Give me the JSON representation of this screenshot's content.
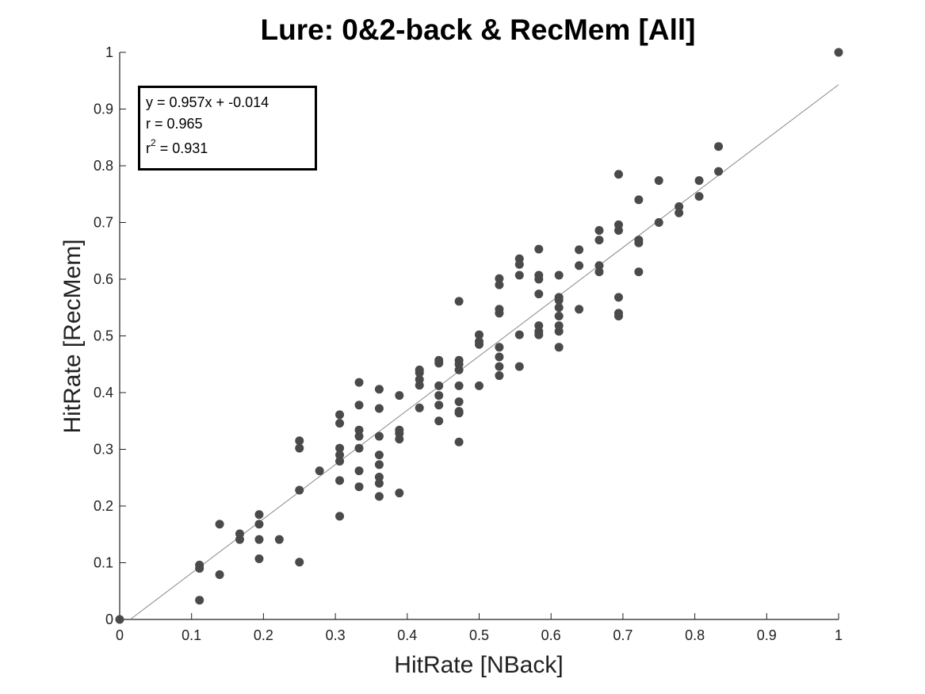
{
  "chart_data": {
    "type": "scatter",
    "title": "Lure: 0&2-back & RecMem [All]",
    "xlabel": "HitRate [NBack]",
    "ylabel": "HitRate [RecMem]",
    "xlim": [
      0,
      1
    ],
    "ylim": [
      0,
      1
    ],
    "xticks": [
      "0",
      "0.1",
      "0.2",
      "0.3",
      "0.4",
      "0.5",
      "0.6",
      "0.7",
      "0.8",
      "0.9",
      "1"
    ],
    "yticks": [
      "0",
      "0.1",
      "0.2",
      "0.3",
      "0.4",
      "0.5",
      "0.6",
      "0.7",
      "0.8",
      "0.9",
      "1"
    ],
    "grid": false,
    "marker_color": "#4a4a4a",
    "fit_line_color": "#888888",
    "fit": {
      "slope": 0.957,
      "intercept": -0.014
    },
    "stats": {
      "equation": "y = 0.957x + -0.014",
      "r": "r = 0.965",
      "r2_prefix": "r",
      "r2_sup": "2",
      "r2_value": " = 0.931"
    },
    "points": [
      [
        0,
        0
      ],
      [
        1,
        1
      ],
      [
        0.111,
        0.096
      ],
      [
        0.111,
        0.09
      ],
      [
        0.111,
        0.034
      ],
      [
        0.139,
        0.168
      ],
      [
        0.139,
        0.079
      ],
      [
        0.167,
        0.151
      ],
      [
        0.167,
        0.141
      ],
      [
        0.194,
        0.185
      ],
      [
        0.194,
        0.168
      ],
      [
        0.194,
        0.141
      ],
      [
        0.194,
        0.107
      ],
      [
        0.222,
        0.141
      ],
      [
        0.25,
        0.315
      ],
      [
        0.25,
        0.302
      ],
      [
        0.25,
        0.228
      ],
      [
        0.25,
        0.101
      ],
      [
        0.278,
        0.262
      ],
      [
        0.306,
        0.361
      ],
      [
        0.306,
        0.346
      ],
      [
        0.306,
        0.302
      ],
      [
        0.306,
        0.29
      ],
      [
        0.306,
        0.279
      ],
      [
        0.306,
        0.245
      ],
      [
        0.306,
        0.182
      ],
      [
        0.333,
        0.418
      ],
      [
        0.333,
        0.378
      ],
      [
        0.333,
        0.334
      ],
      [
        0.333,
        0.323
      ],
      [
        0.333,
        0.302
      ],
      [
        0.333,
        0.262
      ],
      [
        0.333,
        0.234
      ],
      [
        0.361,
        0.406
      ],
      [
        0.361,
        0.372
      ],
      [
        0.361,
        0.323
      ],
      [
        0.361,
        0.29
      ],
      [
        0.361,
        0.273
      ],
      [
        0.361,
        0.251
      ],
      [
        0.361,
        0.24
      ],
      [
        0.361,
        0.217
      ],
      [
        0.389,
        0.395
      ],
      [
        0.389,
        0.334
      ],
      [
        0.389,
        0.328
      ],
      [
        0.389,
        0.318
      ],
      [
        0.389,
        0.223
      ],
      [
        0.417,
        0.44
      ],
      [
        0.417,
        0.435
      ],
      [
        0.417,
        0.423
      ],
      [
        0.417,
        0.413
      ],
      [
        0.417,
        0.373
      ],
      [
        0.444,
        0.457
      ],
      [
        0.444,
        0.452
      ],
      [
        0.444,
        0.412
      ],
      [
        0.444,
        0.395
      ],
      [
        0.444,
        0.378
      ],
      [
        0.444,
        0.35
      ],
      [
        0.472,
        0.561
      ],
      [
        0.472,
        0.457
      ],
      [
        0.472,
        0.45
      ],
      [
        0.472,
        0.44
      ],
      [
        0.472,
        0.412
      ],
      [
        0.472,
        0.384
      ],
      [
        0.472,
        0.367
      ],
      [
        0.472,
        0.364
      ],
      [
        0.472,
        0.313
      ],
      [
        0.5,
        0.502
      ],
      [
        0.5,
        0.49
      ],
      [
        0.5,
        0.485
      ],
      [
        0.5,
        0.412
      ],
      [
        0.528,
        0.601
      ],
      [
        0.528,
        0.59
      ],
      [
        0.528,
        0.547
      ],
      [
        0.528,
        0.54
      ],
      [
        0.528,
        0.48
      ],
      [
        0.528,
        0.463
      ],
      [
        0.528,
        0.446
      ],
      [
        0.528,
        0.43
      ],
      [
        0.556,
        0.636
      ],
      [
        0.556,
        0.626
      ],
      [
        0.556,
        0.607
      ],
      [
        0.556,
        0.502
      ],
      [
        0.556,
        0.446
      ],
      [
        0.583,
        0.653
      ],
      [
        0.583,
        0.607
      ],
      [
        0.583,
        0.6
      ],
      [
        0.583,
        0.574
      ],
      [
        0.583,
        0.518
      ],
      [
        0.583,
        0.508
      ],
      [
        0.583,
        0.502
      ],
      [
        0.611,
        0.607
      ],
      [
        0.611,
        0.568
      ],
      [
        0.611,
        0.563
      ],
      [
        0.611,
        0.55
      ],
      [
        0.611,
        0.535
      ],
      [
        0.611,
        0.518
      ],
      [
        0.611,
        0.508
      ],
      [
        0.611,
        0.48
      ],
      [
        0.639,
        0.652
      ],
      [
        0.639,
        0.624
      ],
      [
        0.639,
        0.547
      ],
      [
        0.667,
        0.686
      ],
      [
        0.667,
        0.669
      ],
      [
        0.667,
        0.624
      ],
      [
        0.667,
        0.613
      ],
      [
        0.694,
        0.785
      ],
      [
        0.694,
        0.696
      ],
      [
        0.694,
        0.686
      ],
      [
        0.694,
        0.568
      ],
      [
        0.694,
        0.54
      ],
      [
        0.694,
        0.535
      ],
      [
        0.722,
        0.74
      ],
      [
        0.722,
        0.669
      ],
      [
        0.722,
        0.664
      ],
      [
        0.722,
        0.613
      ],
      [
        0.75,
        0.774
      ],
      [
        0.75,
        0.7
      ],
      [
        0.778,
        0.728
      ],
      [
        0.778,
        0.717
      ],
      [
        0.806,
        0.774
      ],
      [
        0.806,
        0.746
      ],
      [
        0.833,
        0.834
      ],
      [
        0.833,
        0.79
      ]
    ]
  }
}
